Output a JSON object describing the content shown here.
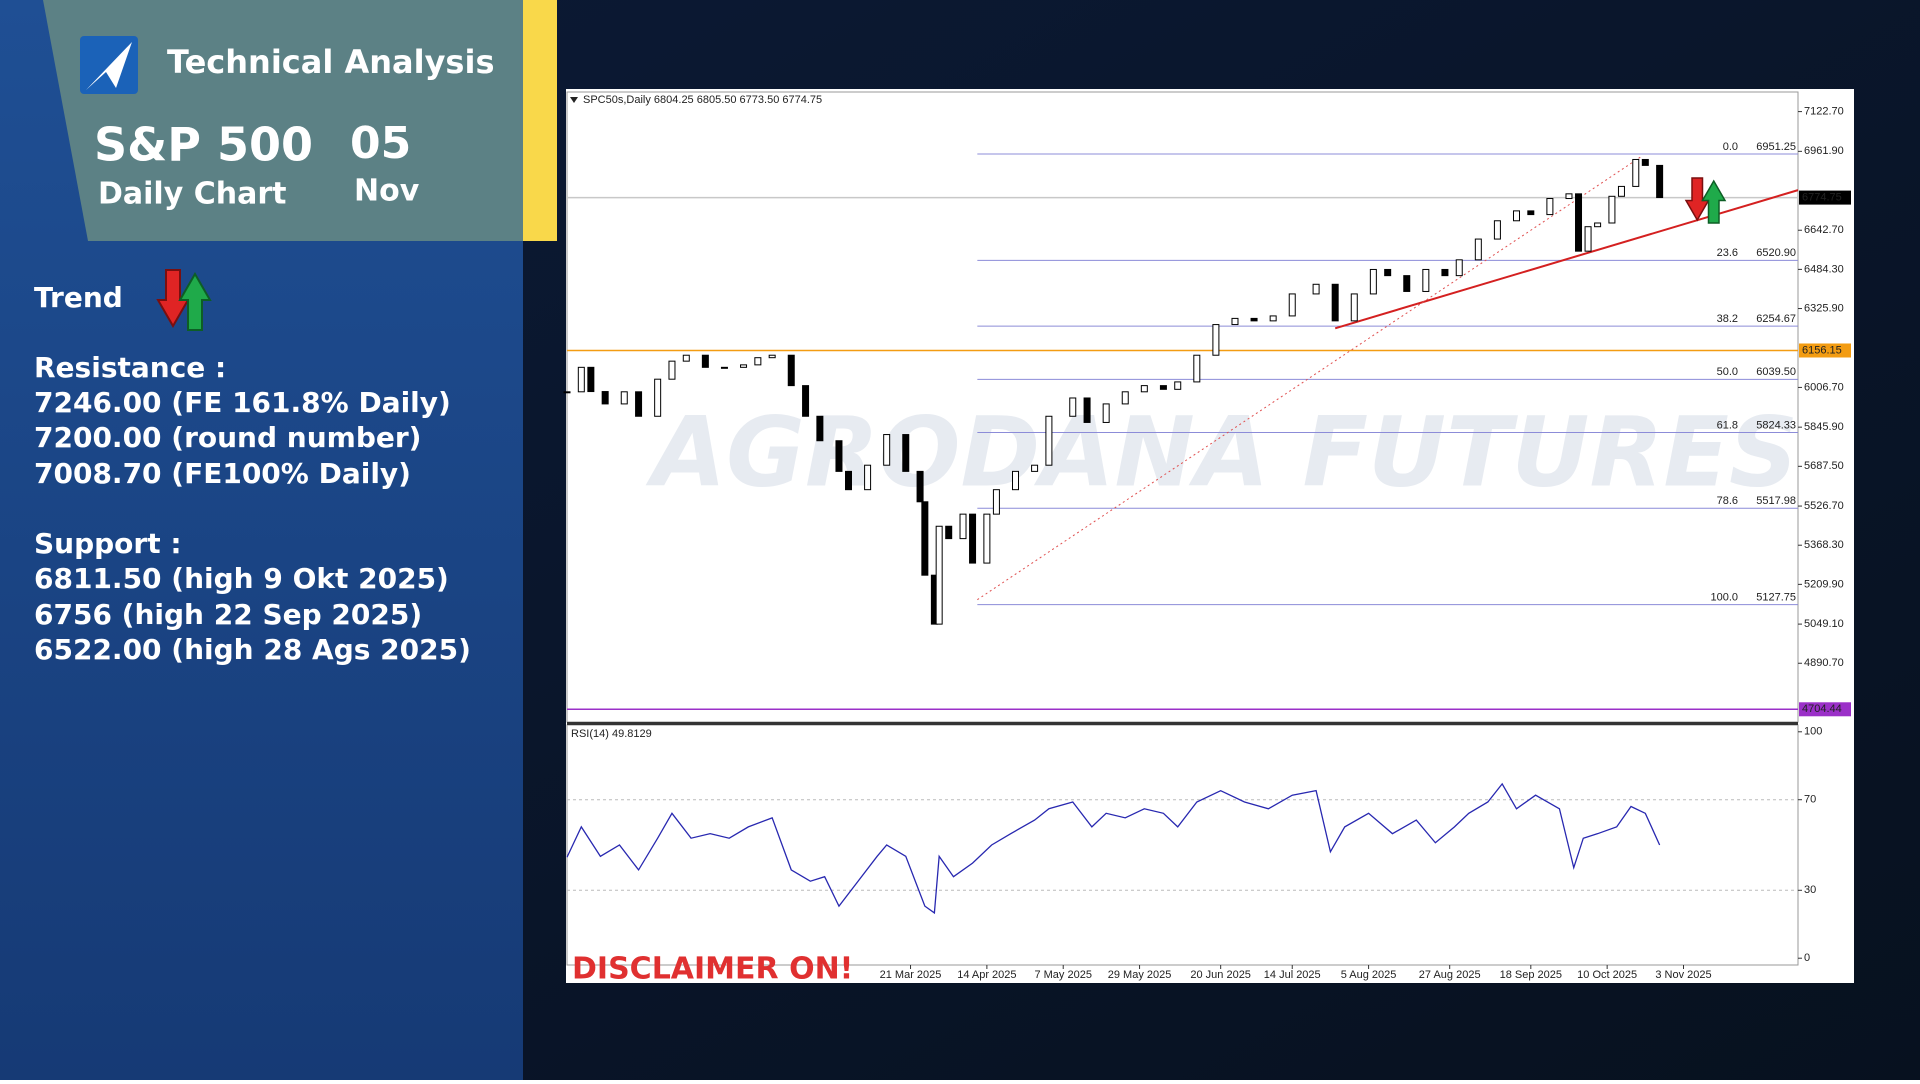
{
  "panel": {
    "header": {
      "title": "Technical Analysis",
      "instrument": "S&P 500",
      "timeframe": "Daily Chart",
      "day": "05",
      "month": "Nov"
    },
    "trend_label": "Trend",
    "resistance": {
      "label": "Resistance :",
      "items": [
        "7246.00 (FE 161.8% Daily)",
        "7200.00 (round number)",
        "7008.70 (FE100% Daily)"
      ]
    },
    "support": {
      "label": "Support :",
      "items": [
        "6811.50 (high 9 Okt 2025)",
        "6756 (high 22 Sep 2025)",
        "6522.00 (high 28 Ags 2025)"
      ]
    }
  },
  "disclaimer": "DISCLAIMER ON!",
  "chart_data": [
    {
      "type": "candlestick",
      "title": "SPC50s,Daily  6804.25 6805.50 6773.50 6774.75",
      "watermark": "AGRODANA FUTURES",
      "color": "#000000",
      "x": [
        0,
        3,
        5,
        8,
        12,
        15,
        19,
        22,
        25,
        29,
        33,
        37,
        40,
        43,
        47,
        50,
        53,
        57,
        59,
        63,
        67,
        71,
        74,
        75,
        77,
        78,
        80,
        83,
        85,
        88,
        90,
        94,
        98,
        101,
        106,
        109,
        113,
        117,
        121,
        125,
        128,
        132,
        136,
        140,
        144,
        148,
        152,
        157,
        161,
        165,
        169,
        172,
        176,
        180,
        184,
        187,
        191,
        195,
        199,
        202,
        206,
        210,
        212,
        214,
        216,
        219,
        221,
        224,
        226,
        229
      ],
      "values": [
        5989,
        6088,
        5990,
        5940,
        5989,
        5890,
        6040,
        6113,
        6137,
        6088,
        6088,
        6098,
        6127,
        6137,
        6014,
        5890,
        5791,
        5667,
        5593,
        5692,
        5816,
        5667,
        5544,
        5247,
        5049,
        5445,
        5395,
        5494,
        5296,
        5494,
        5593,
        5667,
        5692,
        5890,
        5964,
        5865,
        5940,
        5989,
        6014,
        5999,
        6029,
        6137,
        6261,
        6286,
        6276,
        6296,
        6385,
        6424,
        6276,
        6385,
        6484,
        6459,
        6395,
        6484,
        6459,
        6523,
        6607,
        6681,
        6721,
        6706,
        6771,
        6790,
        6558,
        6657,
        6672,
        6780,
        6820,
        6929,
        6905,
        6775
      ],
      "xlim": [
        0,
        258
      ],
      "ylim": [
        4653,
        7202
      ],
      "yticks": [
        {
          "value": 7122.7,
          "label": "7122.70"
        },
        {
          "value": 6961.9,
          "label": "6961.90"
        },
        {
          "value": 6642.7,
          "label": "6642.70"
        },
        {
          "value": 6484.3,
          "label": "6484.30"
        },
        {
          "value": 6325.9,
          "label": "6325.90"
        },
        {
          "value": 6006.7,
          "label": "6006.70"
        },
        {
          "value": 5845.9,
          "label": "5845.90"
        },
        {
          "value": 5687.5,
          "label": "5687.50"
        },
        {
          "value": 5526.7,
          "label": "5526.70"
        },
        {
          "value": 5368.3,
          "label": "5368.30"
        },
        {
          "value": 5209.9,
          "label": "5209.90"
        },
        {
          "value": 5049.1,
          "label": "5049.10"
        },
        {
          "value": 4890.7,
          "label": "4890.70"
        }
      ],
      "xticks": [
        {
          "value": 72,
          "label": "21 Mar 2025"
        },
        {
          "value": 88,
          "label": "14 Apr 2025"
        },
        {
          "value": 104,
          "label": "7 May 2025"
        },
        {
          "value": 120,
          "label": "29 May 2025"
        },
        {
          "value": 137,
          "label": "20 Jun 2025"
        },
        {
          "value": 152,
          "label": "14 Jul 2025"
        },
        {
          "value": 168,
          "label": "5 Aug 2025"
        },
        {
          "value": 185,
          "label": "27 Aug 2025"
        },
        {
          "value": 202,
          "label": "18 Sep 2025"
        },
        {
          "value": 218,
          "label": "10 Oct 2025"
        },
        {
          "value": 234,
          "label": "3 Nov 2025"
        }
      ],
      "fib_start_x": 86,
      "fib_color": "#8c8cd8",
      "fib_levels": [
        {
          "ratio": "0.0",
          "price": {
            "value": 6951.25,
            "label": "6951.25"
          }
        },
        {
          "ratio": "23.6",
          "price": {
            "value": 6520.9,
            "label": "6520.90"
          }
        },
        {
          "ratio": "38.2",
          "price": {
            "value": 6254.67,
            "label": "6254.67"
          }
        },
        {
          "ratio": "50.0",
          "price": {
            "value": 6039.5,
            "label": "6039.50"
          }
        },
        {
          "ratio": "61.8",
          "price": {
            "value": 5824.33,
            "label": "5824.33"
          }
        },
        {
          "ratio": "78.6",
          "price": {
            "value": 5517.98,
            "label": "5517.98"
          }
        },
        {
          "ratio": "100.0",
          "price": {
            "value": 5127.75,
            "label": "5127.75"
          }
        }
      ],
      "hlines": [
        {
          "price": {
            "value": 6774.75,
            "label": "6774.75"
          },
          "color": "#000000",
          "line_color": "#c8c8c8"
        },
        {
          "price": {
            "value": 6156.15,
            "label": "6156.15"
          },
          "color": "#f39c12",
          "line_color": "#f39c12"
        },
        {
          "price": {
            "value": 4704.44,
            "label": "4704.44"
          },
          "color": "#9b30c8",
          "line_color": "#9b30c8"
        }
      ],
      "trendlines": [
        {
          "x": [
            161,
            258
          ],
          "y": [
            6246,
            6805
          ],
          "color": "#d42020",
          "dotted": false
        },
        {
          "x": [
            86,
            225
          ],
          "y": [
            5148,
            6939
          ],
          "color": "#e05050",
          "dotted": true
        }
      ]
    },
    {
      "type": "line",
      "title": "RSI(14) 49.8129",
      "color": "#2828b0",
      "x": [
        0,
        3,
        7,
        11,
        15,
        19,
        22,
        26,
        30,
        34,
        38,
        43,
        47,
        51,
        54,
        57,
        61,
        65,
        67,
        71,
        75,
        77,
        78,
        81,
        85,
        89,
        93,
        98,
        101,
        106,
        110,
        113,
        117,
        121,
        125,
        128,
        132,
        137,
        142,
        147,
        152,
        157,
        160,
        163,
        168,
        173,
        178,
        182,
        186,
        189,
        193,
        196,
        199,
        203,
        208,
        211,
        213,
        216,
        220,
        223,
        226,
        229
      ],
      "values": [
        44.6,
        58,
        45,
        50,
        39,
        53,
        64,
        53,
        55,
        53,
        58,
        62,
        39,
        34,
        36,
        23,
        34,
        45,
        50,
        45,
        23,
        20,
        45,
        36,
        42,
        50,
        55,
        61,
        66,
        69,
        58,
        64,
        62,
        66,
        64,
        58,
        69,
        74,
        69,
        66,
        72,
        74,
        47,
        58,
        64,
        55,
        61,
        51,
        58,
        64,
        69,
        77,
        66,
        72,
        66,
        40,
        53,
        55,
        58,
        67,
        64,
        50
      ],
      "ylim": [
        -3,
        103
      ],
      "yticks": [
        100,
        70,
        30,
        0
      ],
      "levels": [
        70,
        30
      ]
    }
  ]
}
